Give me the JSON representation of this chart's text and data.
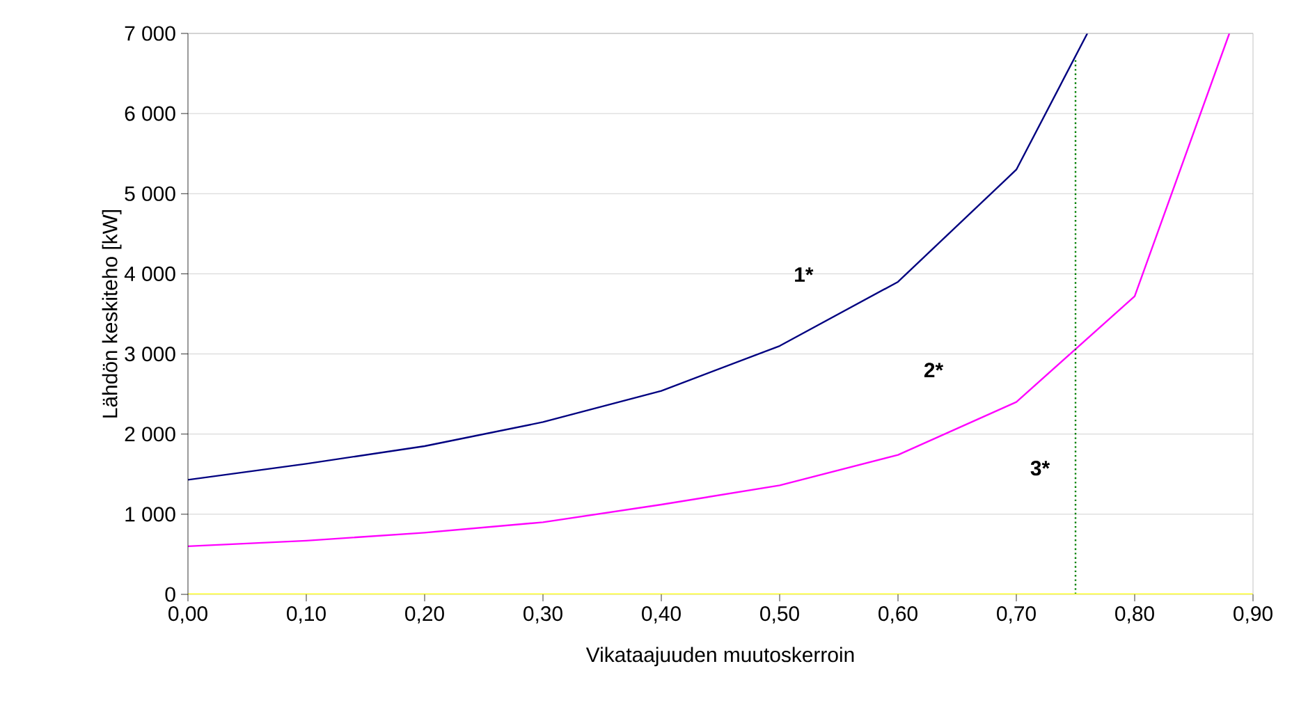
{
  "chart_data": {
    "type": "line",
    "xlabel": "Vikataajuuden muutoskerroin",
    "ylabel": "Lähdön keskiteho [kW]",
    "xlim": [
      0,
      0.9
    ],
    "ylim": [
      0,
      7000
    ],
    "xticks": [
      {
        "value": 0,
        "label": "0,00"
      },
      {
        "value": 0.1,
        "label": "0,10"
      },
      {
        "value": 0.2,
        "label": "0,20"
      },
      {
        "value": 0.3,
        "label": "0,30"
      },
      {
        "value": 0.4,
        "label": "0,40"
      },
      {
        "value": 0.5,
        "label": "0,50"
      },
      {
        "value": 0.6,
        "label": "0,60"
      },
      {
        "value": 0.7,
        "label": "0,70"
      },
      {
        "value": 0.8,
        "label": "0,80"
      },
      {
        "value": 0.9,
        "label": "0,90"
      }
    ],
    "yticks": [
      0,
      {
        "value": 1000,
        "label": "1 000"
      },
      {
        "value": 2000,
        "label": "2 000"
      },
      {
        "value": 3000,
        "label": "3 000"
      },
      {
        "value": 4000,
        "label": "4 000"
      },
      {
        "value": 5000,
        "label": "5 000"
      },
      {
        "value": 6000,
        "label": "6 000"
      },
      {
        "value": 7000,
        "label": "7 000"
      }
    ],
    "grid": "y",
    "marker": "none",
    "series": [
      {
        "color": "#000080",
        "x": [
          0,
          0.1,
          0.2,
          0.3,
          0.4,
          0.5,
          0.6,
          0.7,
          0.76
        ],
        "values": [
          1430,
          1630,
          1850,
          2150,
          2540,
          3100,
          3900,
          5300,
          7000
        ]
      },
      {
        "color": "#ff00ff",
        "x": [
          0,
          0.1,
          0.2,
          0.3,
          0.4,
          0.5,
          0.6,
          0.7,
          0.8,
          0.88
        ],
        "values": [
          600,
          670,
          770,
          900,
          1120,
          1360,
          1740,
          2400,
          3720,
          7000
        ]
      },
      {
        "color": "#008000",
        "x": [
          0.75,
          0.75
        ],
        "values": [
          0,
          6700
        ],
        "line_style": "dotted"
      },
      {
        "color": "#ffff00",
        "x": [
          0,
          0.9
        ],
        "values": [
          0,
          0
        ]
      }
    ],
    "annotations": [
      "1*",
      "2*",
      "3*"
    ]
  }
}
